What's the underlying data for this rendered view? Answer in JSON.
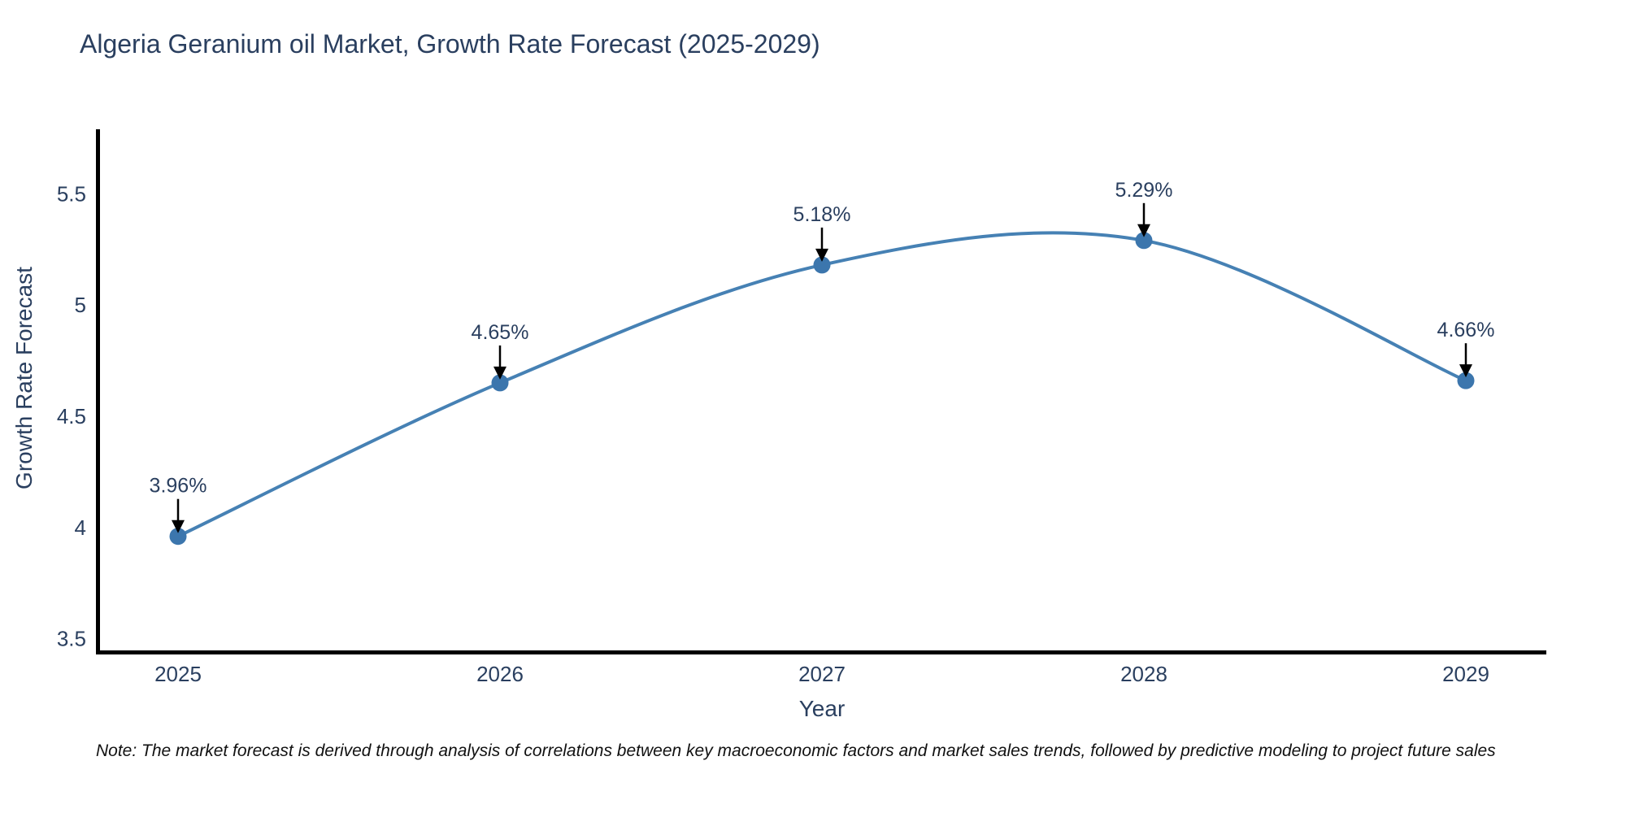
{
  "chart": {
    "title": "Algeria Geranium oil Market, Growth Rate Forecast (2025-2029)",
    "xlabel": "Year",
    "ylabel": "Growth Rate Forecast",
    "note": "Note: The market forecast is derived through analysis of correlations between key macroeconomic factors and market sales trends, followed by predictive modeling to project future sales"
  },
  "chart_data": {
    "type": "line",
    "title": "Algeria Geranium oil Market, Growth Rate Forecast (2025-2029)",
    "xlabel": "Year",
    "ylabel": "Growth Rate Forecast",
    "x": [
      2025,
      2026,
      2027,
      2028,
      2029
    ],
    "series": [
      {
        "name": "Growth Rate Forecast",
        "values": [
          3.96,
          4.65,
          5.18,
          5.29,
          4.66
        ],
        "labels": [
          "3.96%",
          "4.65%",
          "5.18%",
          "5.29%",
          "4.66%"
        ]
      }
    ],
    "yticks": [
      3.5,
      4,
      4.5,
      5,
      5.5
    ],
    "ylim": [
      3.44,
      5.79
    ],
    "xlim": [
      2024.75,
      2029.25
    ],
    "grid": false,
    "legend": "none",
    "line_style": "spline",
    "annotation_style": "value-label-with-black-arrow-pointing-down-to-point",
    "colors": {
      "line": "#4681b4",
      "marker": "#3c76ad",
      "axis": "#000000",
      "text": "#2a3f5f",
      "note_text": "#111111",
      "background": "#ffffff",
      "arrow": "#000000"
    }
  }
}
